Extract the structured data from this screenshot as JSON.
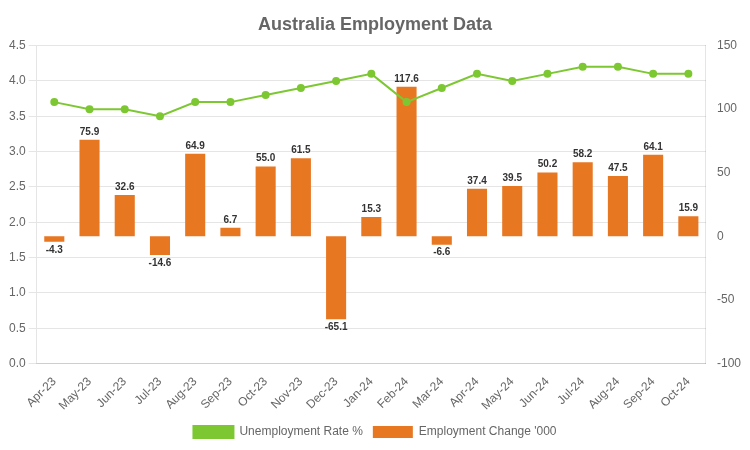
{
  "chart_data": {
    "type": "bar",
    "title": "Australia Employment Data",
    "categories": [
      "Apr-23",
      "May-23",
      "Jun-23",
      "Jul-23",
      "Aug-23",
      "Sep-23",
      "Oct-23",
      "Nov-23",
      "Dec-23",
      "Jan-24",
      "Feb-24",
      "Mar-24",
      "Apr-24",
      "May-24",
      "Jun-24",
      "Jul-24",
      "Aug-24",
      "Sep-24",
      "Oct-24"
    ],
    "series": [
      {
        "name": "Employment Change '000",
        "type": "bar",
        "color": "#e87722",
        "axis": "y2",
        "data_labels": true,
        "values": [
          -4.3,
          75.9,
          32.6,
          -14.6,
          64.9,
          6.7,
          55.0,
          61.5,
          -65.1,
          15.3,
          117.6,
          -6.6,
          37.4,
          39.5,
          50.2,
          58.2,
          47.5,
          64.1,
          15.9
        ],
        "value_labels": [
          "-4.3",
          "75.9",
          "32.6",
          "-14.6",
          "64.9",
          "6.7",
          "55.0",
          "61.5",
          "-65.1",
          "15.3",
          "117.6",
          "-6.6",
          "37.4",
          "39.5",
          "50.2",
          "58.2",
          "47.5",
          "64.1",
          "15.9"
        ]
      },
      {
        "name": "Unemployment Rate %",
        "type": "line",
        "color": "#7dc832",
        "marker": "circle",
        "values": [
          3.7,
          3.6,
          3.6,
          3.5,
          3.7,
          3.7,
          3.8,
          3.9,
          4.0,
          4.1,
          3.7,
          3.9,
          4.1,
          4.0,
          4.1,
          4.2,
          4.2,
          4.1,
          4.1
        ]
      }
    ],
    "ylim": [
      0,
      4.5
    ],
    "yticks": [
      {
        "value": 0,
        "label": "0.0"
      },
      0.5,
      {
        "value": 1,
        "label": "1.0"
      },
      1.5,
      {
        "value": 2,
        "label": "2.0"
      },
      2.5,
      {
        "value": 3,
        "label": "3.0"
      },
      3.5,
      {
        "value": 4,
        "label": "4.0"
      },
      4.5
    ],
    "y2lim": [
      -100,
      150
    ],
    "y2ticks": [
      -100,
      -50,
      0,
      50,
      100,
      150
    ],
    "grid": true,
    "legend": "bottom"
  }
}
